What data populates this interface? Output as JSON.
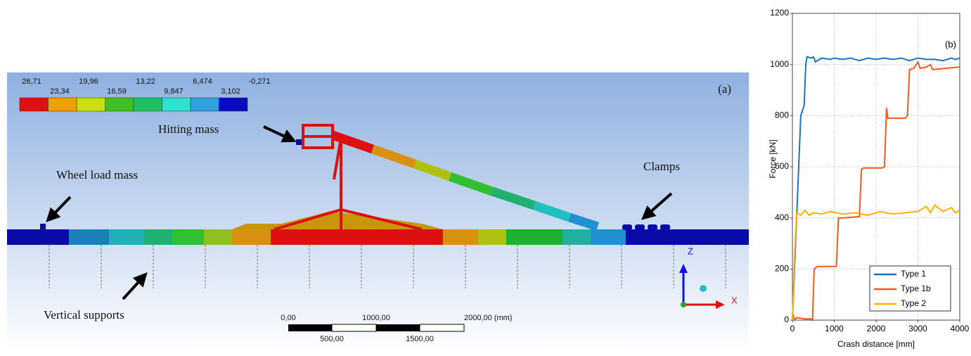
{
  "simulation": {
    "panel_label": "(a)",
    "contour_labels_top": [
      "26,71",
      "19,96",
      "13,22",
      "6,474",
      "-0,271"
    ],
    "contour_labels_bottom": [
      "23,34",
      "16,59",
      "9,847",
      "3,102"
    ],
    "annotations": {
      "hitting_mass": "Hitting mass",
      "wheel_load_mass": "Wheel load mass",
      "clamps": "Clamps",
      "vertical_supports": "Vertical supports"
    },
    "scale_bar": {
      "top": [
        "0,00",
        "1000,00",
        "2000,00 (mm)"
      ],
      "bottom": [
        "500,00",
        "1500,00"
      ]
    },
    "axes_triad": {
      "z": "Z",
      "x": "X"
    }
  },
  "chart_data": {
    "type": "line",
    "annotation": "(b)",
    "x_label": "Crash distance [mm]",
    "y_label": "Force [kN]",
    "xlim": [
      0,
      4000
    ],
    "xticks": [
      0,
      1000,
      2000,
      3000,
      4000
    ],
    "ylim": [
      0,
      1200
    ],
    "yticks": [
      0,
      200,
      400,
      600,
      800,
      1000,
      1200
    ],
    "grid": true,
    "legend_loc": "lower right",
    "series": [
      {
        "name": "Type 1",
        "color": "#1f72b8",
        "x": [
          0,
          100,
          200,
          280,
          320,
          350,
          450,
          500,
          550,
          700,
          900,
          1000,
          1200,
          1400,
          1600,
          1800,
          2000,
          2200,
          2400,
          2600,
          2800,
          3000,
          3200,
          3400,
          3600,
          3800,
          3900,
          4000
        ],
        "values": [
          0,
          400,
          800,
          840,
          1000,
          1030,
          1025,
          1030,
          1010,
          1025,
          1020,
          1025,
          1020,
          1025,
          1015,
          1025,
          1020,
          1025,
          1020,
          1025,
          1015,
          1025,
          1020,
          1020,
          1015,
          1025,
          1020,
          1025
        ]
      },
      {
        "name": "Type 1b",
        "color": "#f05a22",
        "x": [
          0,
          50,
          100,
          300,
          450,
          480,
          520,
          600,
          1050,
          1100,
          1200,
          1600,
          1650,
          1700,
          2150,
          2200,
          2250,
          2280,
          2700,
          2750,
          2800,
          2900,
          3000,
          3050,
          3200,
          3300,
          3350,
          4000
        ],
        "values": [
          30,
          0,
          10,
          5,
          5,
          0,
          200,
          210,
          210,
          400,
          400,
          405,
          590,
          595,
          595,
          600,
          830,
          790,
          790,
          800,
          980,
          985,
          1010,
          985,
          990,
          1000,
          980,
          990
        ]
      },
      {
        "name": "Type 2",
        "color": "#ffb000",
        "x": [
          0,
          50,
          100,
          200,
          300,
          400,
          500,
          700,
          900,
          1200,
          1500,
          1800,
          2100,
          2400,
          2700,
          3000,
          3200,
          3300,
          3400,
          3600,
          3800,
          3900,
          4000
        ],
        "values": [
          0,
          250,
          420,
          410,
          430,
          410,
          420,
          415,
          425,
          415,
          420,
          410,
          425,
          415,
          420,
          425,
          445,
          420,
          450,
          425,
          440,
          420,
          430
        ]
      }
    ]
  }
}
